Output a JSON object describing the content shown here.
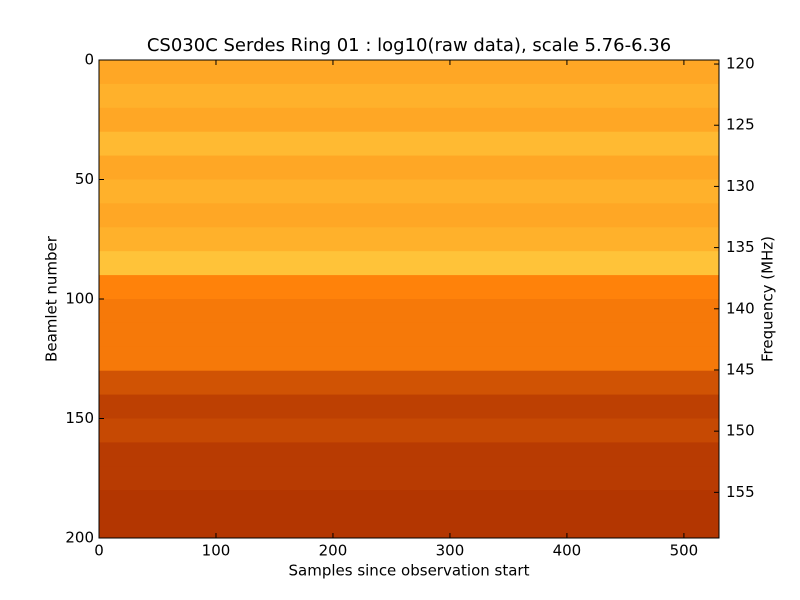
{
  "chart_data": {
    "type": "heatmap",
    "title": "CS030C Serdes Ring 01 : log10(raw data), scale 5.76-6.36",
    "x_label": "Samples since observation start",
    "y_label": "Beamlet number",
    "y2_label": "Frequency (MHz)",
    "xlim": [
      0,
      530
    ],
    "xticks": [
      0,
      100,
      200,
      300,
      400,
      500
    ],
    "ylim": [
      0,
      200
    ],
    "yticks": [
      0,
      50,
      100,
      150,
      200
    ],
    "y_inverted": true,
    "y2lim": [
      119.67,
      158.73
    ],
    "y2ticks": [
      120,
      125,
      130,
      135,
      140,
      145,
      150,
      155
    ],
    "zlim": [
      5.76,
      6.36
    ],
    "z": [
      6.2,
      6.22,
      6.2,
      6.24,
      6.2,
      6.22,
      6.2,
      6.22,
      6.26,
      6.12,
      6.1,
      6.1,
      6.1,
      6.02,
      5.98,
      6.0,
      5.97,
      5.97,
      5.96,
      5.96
    ]
  }
}
